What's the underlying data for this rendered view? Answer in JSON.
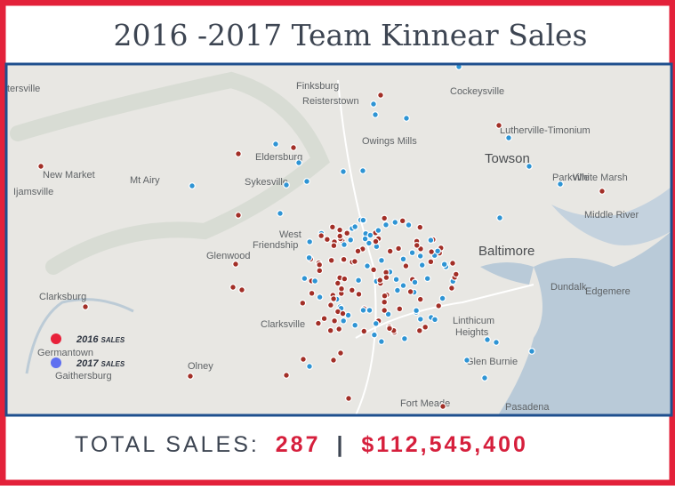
{
  "header": {
    "title": "2016 -2017 Team Kinnear Sales"
  },
  "map": {
    "labels": [
      "tersville",
      "Finksburg",
      "Reisterstown",
      "Cockeysville",
      "Owings Mills",
      "Lutherville-Timonium",
      "Towson",
      "New Market",
      "Mt Airy",
      "Eldersburg",
      "Sykesville",
      "Parkville",
      "White Marsh",
      "Ijamsville",
      "Middle River",
      "West",
      "Friendship",
      "Baltimore",
      "Glenwood",
      "Dundalk",
      "Edgemere",
      "Clarksburg",
      "Clarksville",
      "Linthicum",
      "Heights",
      "Germantown",
      "Gaithersburg",
      "Olney",
      "Glen Burnie",
      "Fort Meade",
      "Pasadena"
    ],
    "legend": [
      "2016 sales",
      "2017 sales"
    ]
  },
  "total": {
    "label": "TOTAL SALES:",
    "count": 287,
    "separator": "|",
    "amount": {
      "value": 112545400,
      "label": "$112,545,400"
    }
  }
}
